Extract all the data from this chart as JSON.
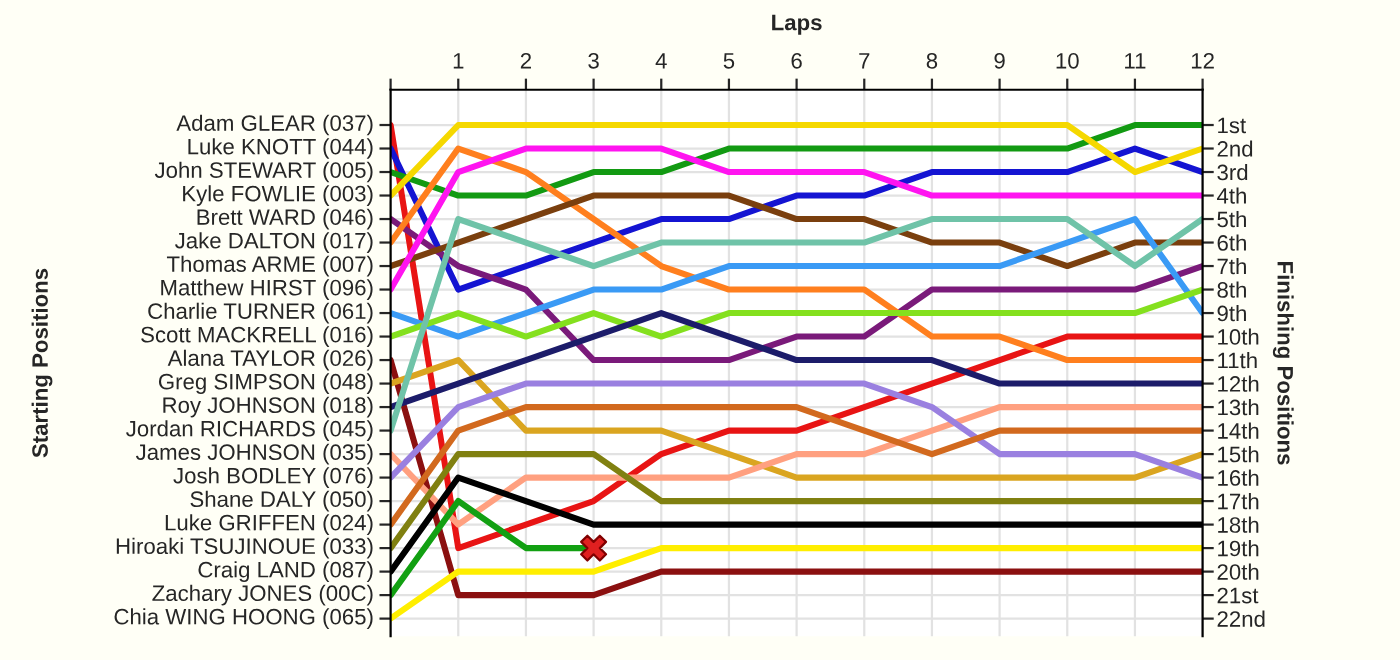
{
  "chart_data": {
    "type": "line",
    "xlabel": "Laps",
    "ylabel": "Finishing Positions",
    "x": [
      0,
      1,
      2,
      3,
      4,
      5,
      6,
      7,
      8,
      9,
      10,
      11,
      12
    ],
    "xlim": [
      0,
      12
    ],
    "xticks": [
      {
        "value": 0,
        "label": null
      },
      1,
      2,
      3,
      4,
      5,
      6,
      7,
      8,
      9,
      10,
      11,
      12
    ],
    "ylim": [
      22.75,
      -0.5
    ],
    "yticks": [
      {
        "value": 1,
        "label": "1st"
      },
      {
        "value": 2,
        "label": "2nd"
      },
      {
        "value": 3,
        "label": "3rd"
      },
      {
        "value": 4,
        "label": "4th"
      },
      {
        "value": 5,
        "label": "5th"
      },
      {
        "value": 6,
        "label": "6th"
      },
      {
        "value": 7,
        "label": "7th"
      },
      {
        "value": 8,
        "label": "8th"
      },
      {
        "value": 9,
        "label": "9th"
      },
      {
        "value": 10,
        "label": "10th"
      },
      {
        "value": 11,
        "label": "11th"
      },
      {
        "value": 12,
        "label": "12th"
      },
      {
        "value": 13,
        "label": "13th"
      },
      {
        "value": 14,
        "label": "14th"
      },
      {
        "value": 15,
        "label": "15th"
      },
      {
        "value": 16,
        "label": "16th"
      },
      {
        "value": 17,
        "label": "17th"
      },
      {
        "value": 18,
        "label": "18th"
      },
      {
        "value": 19,
        "label": "19th"
      },
      {
        "value": 20,
        "label": "20th"
      },
      {
        "value": 21,
        "label": "21st"
      },
      {
        "value": 22,
        "label": "22nd"
      }
    ],
    "annotations": [
      "Adam GLEAR (037)",
      "Luke KNOTT (044)",
      "John STEWART (005)",
      "Kyle FOWLIE (003)",
      "Brett WARD (046)",
      "Jake DALTON (017)",
      "Thomas ARME (007)",
      "Matthew HIRST (096)",
      "Charlie TURNER (061)",
      "Scott MACKRELL (016)",
      "Alana TAYLOR (026)",
      "Greg SIMPSON (048)",
      "Roy JOHNSON (018)",
      "Jordan RICHARDS (045)",
      "James JOHNSON (035)",
      "Josh BODLEY (076)",
      "Shane DALY (050)",
      "Luke GRIFFEN (024)",
      "Hiroaki TSUJINOUE (033)",
      "Craig LAND (087)",
      "Zachary JONES (00C)",
      "Chia WING HOONG (065)",
      "Starting Positions"
    ],
    "grid": true,
    "series": [
      {
        "color": "#e81414",
        "values": [
          1,
          19,
          18,
          17,
          15,
          14,
          14,
          13,
          12,
          11,
          10,
          10,
          10
        ]
      },
      {
        "color": "#1414d2",
        "values": [
          2,
          8,
          7,
          6,
          5,
          5,
          4,
          4,
          3,
          3,
          3,
          2,
          3
        ]
      },
      {
        "color": "#129a12",
        "values": [
          3,
          4,
          4,
          3,
          3,
          2,
          2,
          2,
          2,
          2,
          2,
          1,
          1
        ]
      },
      {
        "color": "#f5d800",
        "values": [
          4,
          1,
          1,
          1,
          1,
          1,
          1,
          1,
          1,
          1,
          1,
          3,
          2
        ]
      },
      {
        "color": "#7a1a7a",
        "values": [
          5,
          7,
          8,
          11,
          11,
          11,
          10,
          10,
          8,
          8,
          8,
          8,
          7
        ]
      },
      {
        "color": "#ff7f1e",
        "values": [
          6,
          2,
          3,
          5,
          7,
          8,
          8,
          8,
          10,
          10,
          11,
          11,
          11
        ]
      },
      {
        "color": "#7a3f0e",
        "values": [
          7,
          6,
          5,
          4,
          4,
          4,
          5,
          5,
          6,
          6,
          7,
          6,
          6
        ]
      },
      {
        "color": "#ff14f0",
        "values": [
          8,
          3,
          2,
          2,
          2,
          3,
          3,
          3,
          4,
          4,
          4,
          4,
          4
        ]
      },
      {
        "color": "#3a9af5",
        "values": [
          9,
          10,
          9,
          8,
          8,
          7,
          7,
          7,
          7,
          7,
          6,
          5,
          9
        ]
      },
      {
        "color": "#84e01e",
        "values": [
          10,
          9,
          10,
          9,
          10,
          9,
          9,
          9,
          9,
          9,
          9,
          9,
          8
        ]
      },
      {
        "color": "#8b1010",
        "values": [
          11,
          21,
          21,
          21,
          20,
          20,
          20,
          20,
          20,
          20,
          20,
          20,
          20
        ]
      },
      {
        "color": "#daa520",
        "values": [
          12,
          11,
          14,
          14,
          14,
          15,
          16,
          16,
          16,
          16,
          16,
          16,
          15
        ]
      },
      {
        "color": "#1c1c6a",
        "values": [
          13,
          12,
          11,
          10,
          9,
          10,
          11,
          11,
          11,
          12,
          12,
          12,
          12
        ]
      },
      {
        "color": "#6fc3a8",
        "values": [
          14,
          5,
          6,
          7,
          6,
          6,
          6,
          6,
          5,
          5,
          5,
          7,
          5
        ]
      },
      {
        "color": "#ffa080",
        "values": [
          15,
          18,
          16,
          16,
          16,
          16,
          15,
          15,
          14,
          13,
          13,
          13,
          13
        ]
      },
      {
        "color": "#9a80e0",
        "values": [
          16,
          13,
          12,
          12,
          12,
          12,
          12,
          12,
          13,
          15,
          15,
          15,
          16
        ]
      },
      {
        "color": "#d2691e",
        "values": [
          18,
          14,
          13,
          13,
          13,
          13,
          13,
          14,
          15,
          14,
          14,
          14,
          14
        ]
      },
      {
        "color": "#808010",
        "values": [
          19,
          15,
          15,
          15,
          17,
          17,
          17,
          17,
          17,
          17,
          17,
          17,
          17
        ]
      },
      {
        "color": "#000000",
        "values": [
          20,
          16,
          17,
          18,
          18,
          18,
          18,
          18,
          18,
          18,
          18,
          18,
          18
        ]
      },
      {
        "color": "#12a012",
        "values": [
          21,
          17,
          19,
          19,
          null,
          null,
          null,
          null,
          null,
          null,
          null,
          null,
          null
        ]
      },
      {
        "type": "scatter",
        "x": [
          3
        ],
        "color": "#e02020",
        "values": [
          19
        ],
        "marker": "cross"
      },
      {
        "color": "#ffee00",
        "values": [
          22,
          20,
          20,
          20,
          19,
          19,
          19,
          19,
          19,
          19,
          19,
          19,
          19
        ]
      }
    ]
  }
}
